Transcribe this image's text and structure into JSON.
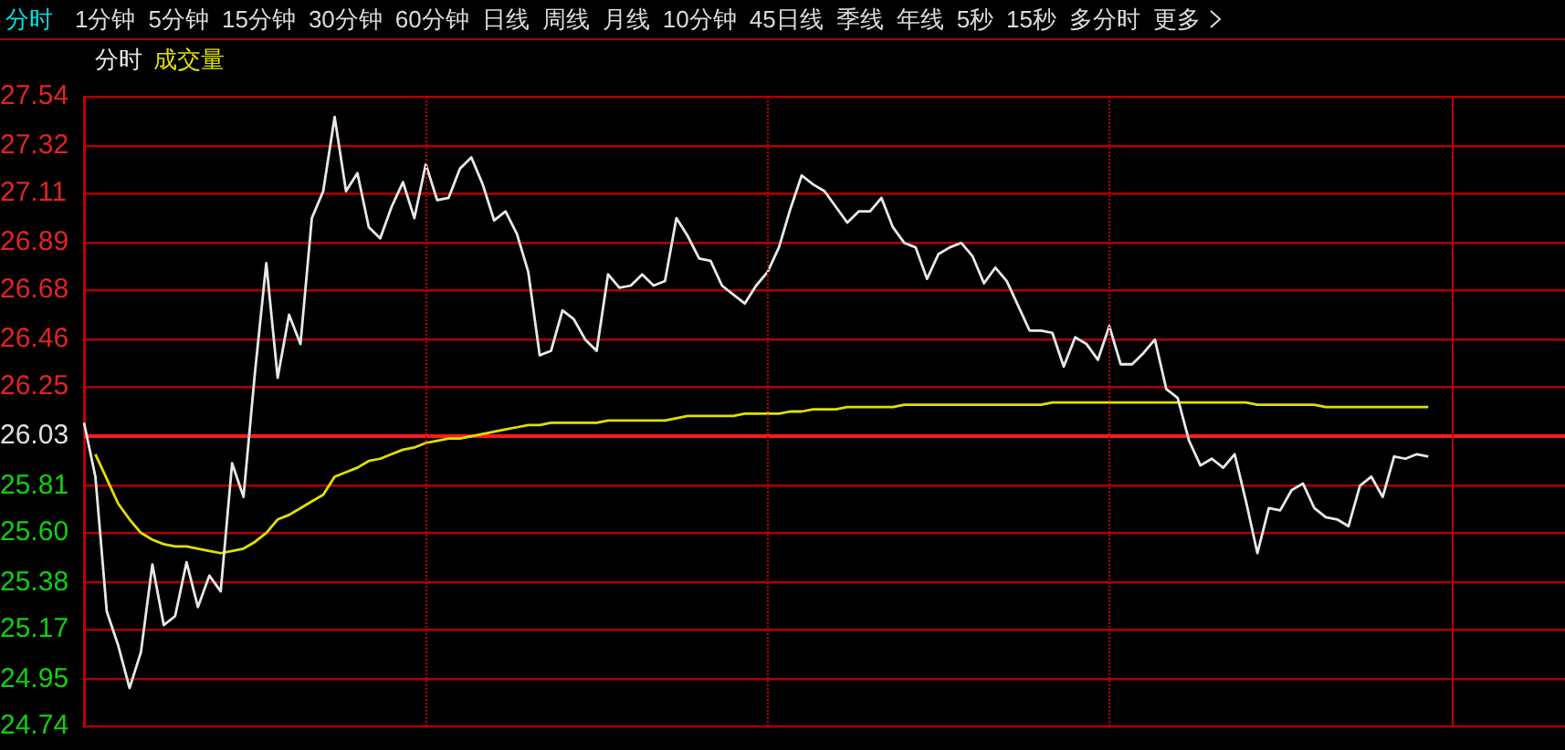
{
  "chart_data": {
    "type": "line",
    "annotations": [
      "分时",
      "1分钟",
      "5分钟",
      "15分钟",
      "30分钟",
      "60分钟",
      "日线",
      "周线",
      "月线",
      "10分钟",
      "45日线",
      "季线",
      "年线",
      "5秒",
      "15秒",
      "多分时",
      "更多"
    ],
    "grid": "y",
    "marker": "none",
    "line_style": "solid",
    "tick_labels": "y",
    "categories": [
      null,
      null,
      null,
      null,
      null,
      null,
      null,
      null,
      null,
      null,
      null,
      null,
      null,
      null,
      null,
      null,
      null,
      null,
      null,
      null,
      null,
      null,
      null,
      null,
      null,
      null,
      null,
      null,
      null,
      null,
      null,
      null,
      null,
      null,
      null,
      null,
      null,
      null,
      null,
      null,
      null,
      null,
      null,
      null,
      null,
      null,
      null,
      null,
      null,
      null,
      null,
      null,
      null,
      null,
      null,
      null,
      null,
      null,
      null,
      null,
      null,
      null,
      null,
      null,
      null,
      null,
      null,
      null,
      null,
      null,
      null,
      null,
      null,
      null,
      null,
      null,
      null,
      null,
      null,
      null,
      null,
      null,
      null,
      null,
      null,
      null,
      null,
      null,
      null,
      null,
      null,
      null,
      null,
      null,
      null,
      null,
      null,
      null,
      null,
      null,
      null,
      null,
      null,
      null,
      null,
      null,
      null,
      null,
      null,
      null,
      null,
      null,
      null,
      null,
      null,
      null,
      null,
      null,
      null,
      null,
      null,
      null,
      null,
      null,
      null,
      null,
      null,
      null,
      null,
      null,
      null
    ],
    "ylim": [
      24.74,
      27.54
    ],
    "yticks": [
      24.74,
      24.95,
      25.17,
      25.38,
      {
        "value": 25.6,
        "label": "25.60"
      },
      25.81,
      26.03,
      26.25,
      26.46,
      26.68,
      26.89,
      27.11,
      27.32,
      27.54
    ],
    "ref_lines": [
      {
        "axis": "y",
        "value": 26.03,
        "color": "#ff1a1a"
      }
    ],
    "series": [
      {
        "name": "分时",
        "color": "#e8e8e8",
        "values": [
          26.09,
          25.85,
          25.25,
          25.1,
          24.91,
          25.07,
          25.46,
          25.19,
          25.23,
          25.47,
          25.27,
          25.41,
          25.34,
          25.91,
          25.76,
          26.31,
          26.8,
          26.29,
          26.57,
          26.44,
          27.0,
          27.12,
          27.45,
          27.12,
          27.2,
          26.96,
          26.91,
          27.05,
          27.16,
          27.0,
          27.24,
          27.08,
          27.09,
          27.22,
          27.27,
          27.15,
          26.99,
          27.03,
          26.93,
          26.76,
          26.39,
          26.41,
          26.59,
          26.55,
          26.46,
          26.41,
          26.75,
          26.69,
          26.7,
          26.75,
          26.7,
          26.72,
          27.0,
          26.92,
          26.82,
          26.81,
          26.7,
          26.66,
          26.62,
          26.7,
          26.76,
          26.87,
          27.04,
          27.19,
          27.15,
          27.12,
          27.05,
          26.98,
          27.03,
          27.03,
          27.09,
          26.96,
          26.89,
          26.87,
          26.73,
          26.84,
          26.87,
          26.89,
          26.83,
          26.71,
          26.78,
          26.72,
          26.61,
          26.5,
          26.5,
          26.49,
          26.34,
          26.47,
          26.44,
          26.37,
          26.52,
          26.35,
          26.35,
          26.4,
          26.46,
          26.24,
          26.2,
          26.01,
          25.9,
          25.93,
          25.89,
          25.95,
          25.74,
          25.51,
          25.71,
          25.7,
          25.79,
          25.82,
          25.71,
          25.67,
          25.66,
          25.63,
          25.81,
          25.85,
          25.76,
          25.94,
          25.93,
          25.95,
          25.94,
          null,
          null,
          null,
          null,
          null,
          null,
          null,
          null,
          null,
          null,
          null,
          null
        ]
      },
      {
        "name": "成交量",
        "color": "#e0e000",
        "values": [
          null,
          25.95,
          25.84,
          25.73,
          25.66,
          25.6,
          25.57,
          25.55,
          25.54,
          25.54,
          25.53,
          25.52,
          25.51,
          25.52,
          25.53,
          25.56,
          25.6,
          25.66,
          25.68,
          25.71,
          25.74,
          25.77,
          25.85,
          25.87,
          25.89,
          25.92,
          25.93,
          25.95,
          25.97,
          25.98,
          26.0,
          26.01,
          26.02,
          26.02,
          26.03,
          26.04,
          26.05,
          26.06,
          26.07,
          26.08,
          26.08,
          26.09,
          26.09,
          26.09,
          26.09,
          26.09,
          26.1,
          26.1,
          26.1,
          26.1,
          26.1,
          26.1,
          26.11,
          26.12,
          26.12,
          26.12,
          26.12,
          26.12,
          26.13,
          26.13,
          26.13,
          26.13,
          26.14,
          26.14,
          26.15,
          26.15,
          26.15,
          26.16,
          26.16,
          26.16,
          26.16,
          26.16,
          26.17,
          26.17,
          26.17,
          26.17,
          26.17,
          26.17,
          26.17,
          26.17,
          26.17,
          26.17,
          26.17,
          26.17,
          26.17,
          26.18,
          26.18,
          26.18,
          26.18,
          26.18,
          26.18,
          26.18,
          26.18,
          26.18,
          26.18,
          26.18,
          26.18,
          26.18,
          26.18,
          26.18,
          26.18,
          26.18,
          26.18,
          26.17,
          26.17,
          26.17,
          26.17,
          26.17,
          26.17,
          26.16,
          26.16,
          26.16,
          26.16,
          26.16,
          26.16,
          26.16,
          26.16,
          26.16,
          26.16,
          null,
          null,
          null,
          null,
          null,
          null,
          null,
          null,
          null,
          null,
          null,
          null
        ]
      }
    ]
  }
}
